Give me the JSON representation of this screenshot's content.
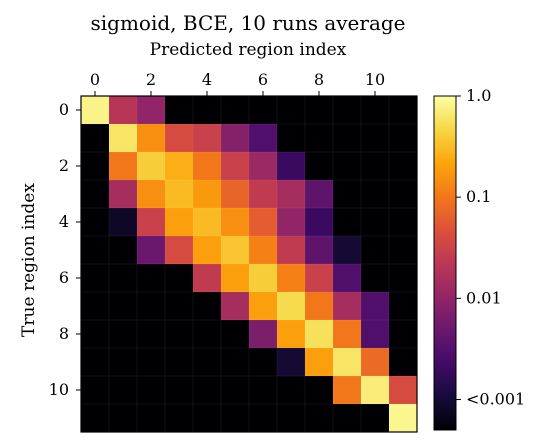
{
  "chart_data": {
    "type": "heatmap",
    "title": "sigmoid, BCE, 10 runs average",
    "xlabel": "Predicted region index",
    "ylabel": "True region index",
    "x_axis_position": "top",
    "rows": 12,
    "cols": 12,
    "x_ticks": [
      "0",
      "2",
      "4",
      "6",
      "8",
      "10"
    ],
    "y_ticks": [
      "0",
      "2",
      "4",
      "6",
      "8",
      "10"
    ],
    "colormap": "inferno",
    "scale": "log",
    "vmin": 0.0005,
    "vmax": 1.0,
    "colorbar": {
      "ticks": [
        {
          "value": 1.0,
          "label": "1.0"
        },
        {
          "value": 0.1,
          "label": "0.1"
        },
        {
          "value": 0.01,
          "label": "0.01"
        },
        {
          "value": 0.001,
          "label": "<0.001"
        }
      ]
    },
    "matrix": [
      [
        0.8,
        0.02,
        0.01,
        0,
        0,
        0,
        0,
        0,
        0,
        0,
        0,
        0
      ],
      [
        0,
        0.6,
        0.15,
        0.04,
        0.03,
        0.008,
        0.003,
        0,
        0,
        0,
        0,
        0
      ],
      [
        0,
        0.1,
        0.4,
        0.25,
        0.1,
        0.03,
        0.012,
        0.002,
        0,
        0,
        0,
        0
      ],
      [
        0,
        0.015,
        0.15,
        0.3,
        0.18,
        0.07,
        0.025,
        0.015,
        0.004,
        0,
        0,
        0
      ],
      [
        0,
        0.0008,
        0.03,
        0.2,
        0.3,
        0.15,
        0.06,
        0.01,
        0.002,
        0,
        0,
        0
      ],
      [
        0,
        0,
        0.005,
        0.04,
        0.2,
        0.35,
        0.12,
        0.025,
        0.004,
        0.001,
        0,
        0
      ],
      [
        0,
        0,
        0,
        0,
        0.025,
        0.2,
        0.4,
        0.12,
        0.03,
        0.003,
        0,
        0
      ],
      [
        0,
        0,
        0,
        0,
        0,
        0.015,
        0.2,
        0.5,
        0.1,
        0.015,
        0.003,
        0
      ],
      [
        0,
        0,
        0,
        0,
        0,
        0,
        0.007,
        0.2,
        0.55,
        0.1,
        0.003,
        0
      ],
      [
        0,
        0,
        0,
        0,
        0,
        0,
        0,
        0.001,
        0.2,
        0.6,
        0.08,
        0
      ],
      [
        0,
        0,
        0,
        0,
        0,
        0,
        0,
        0,
        0,
        0.1,
        0.7,
        0.04
      ],
      [
        0,
        0,
        0,
        0,
        0,
        0,
        0,
        0,
        0,
        0,
        0,
        0.85
      ]
    ]
  }
}
